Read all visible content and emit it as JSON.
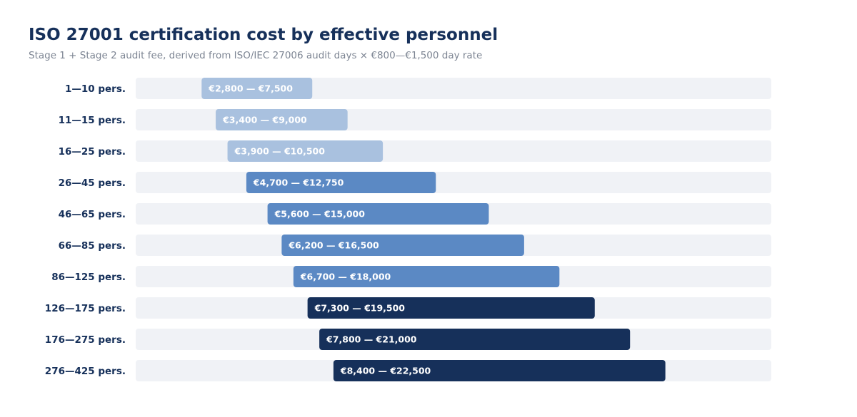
{
  "chart_data": {
    "type": "bar",
    "subtype": "range",
    "orientation": "horizontal",
    "title": "ISO 27001 certification cost by effective personnel",
    "subtitle": "Stage 1 + Stage 2 audit fee, derived from ISO/IEC 27006 audit days × €800—€1,500 day rate",
    "xlim": [
      0,
      27000
    ],
    "grid": false,
    "legend": "none",
    "track_color": "#f0f2f6",
    "categories": [
      "1—10 pers.",
      "11—15 pers.",
      "16—25 pers.",
      "26—45 pers.",
      "46—65 pers.",
      "66—85 pers.",
      "86—125 pers.",
      "126—175 pers.",
      "176—275 pers.",
      "276—425 pers."
    ],
    "ranges": [
      {
        "low": 2800,
        "high": 7500,
        "label": "€2,800 — €7,500",
        "color": "#a9c1df"
      },
      {
        "low": 3400,
        "high": 9000,
        "label": "€3,400 — €9,000",
        "color": "#a9c1df"
      },
      {
        "low": 3900,
        "high": 10500,
        "label": "€3,900 — €10,500",
        "color": "#a9c1df"
      },
      {
        "low": 4700,
        "high": 12750,
        "label": "€4,700 — €12,750",
        "color": "#5b89c4"
      },
      {
        "low": 5600,
        "high": 15000,
        "label": "€5,600 — €15,000",
        "color": "#5b89c4"
      },
      {
        "low": 6200,
        "high": 16500,
        "label": "€6,200 — €16,500",
        "color": "#5b89c4"
      },
      {
        "low": 6700,
        "high": 18000,
        "label": "€6,700 — €18,000",
        "color": "#5b89c4"
      },
      {
        "low": 7300,
        "high": 19500,
        "label": "€7,300 — €19,500",
        "color": "#16305a"
      },
      {
        "low": 7800,
        "high": 21000,
        "label": "€7,800 — €21,000",
        "color": "#16305a"
      },
      {
        "low": 8400,
        "high": 22500,
        "label": "€8,400 — €22,500",
        "color": "#16305a"
      }
    ]
  }
}
